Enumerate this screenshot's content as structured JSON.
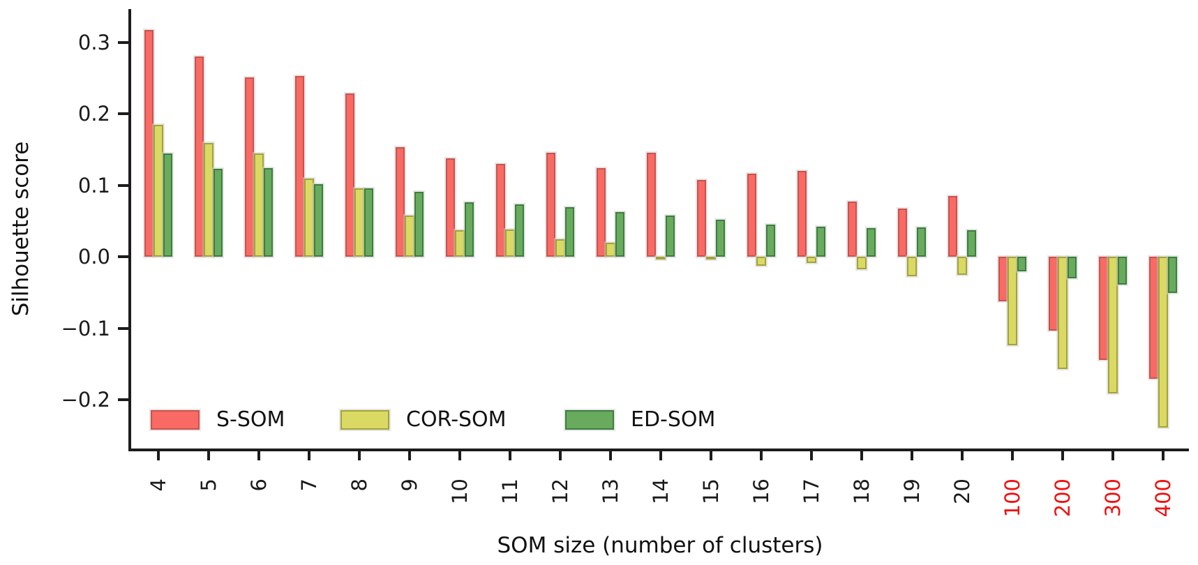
{
  "chart_data": {
    "type": "bar",
    "title": "",
    "xlabel": "SOM size (number of clusters)",
    "ylabel": "Silhouette score",
    "categories": [
      "4",
      "5",
      "6",
      "7",
      "8",
      "9",
      "10",
      "11",
      "12",
      "13",
      "14",
      "15",
      "16",
      "17",
      "18",
      "19",
      "20",
      "100",
      "200",
      "300",
      "400"
    ],
    "highlighted_categories": [
      "100",
      "200",
      "300",
      "400"
    ],
    "highlight_color": "#f01010",
    "tick_label_color": "#1a1a1a",
    "yticks": [
      "0.3",
      "0.2",
      "0.1",
      "0.0",
      "−0.1",
      "−0.2"
    ],
    "ytick_values": [
      0.3,
      0.2,
      0.1,
      0.0,
      -0.1,
      -0.2
    ],
    "ylim": [
      -0.268,
      0.345
    ],
    "grid": false,
    "legend_position": "inside lower-left, horizontal",
    "series": [
      {
        "name": "S-SOM",
        "fill": "#f96a64",
        "edge": "#c9534b",
        "values": [
          0.317,
          0.28,
          0.251,
          0.253,
          0.228,
          0.153,
          0.138,
          0.13,
          0.145,
          0.124,
          0.145,
          0.107,
          0.116,
          0.12,
          0.077,
          0.067,
          0.085,
          -0.062,
          -0.103,
          -0.144,
          -0.171
        ]
      },
      {
        "name": "COR-SOM",
        "fill": "#d9d964",
        "edge": "#a3a339",
        "values": [
          0.184,
          0.159,
          0.144,
          0.109,
          0.096,
          0.058,
          0.037,
          0.038,
          0.024,
          0.02,
          -0.002,
          -0.003,
          -0.013,
          -0.009,
          -0.018,
          -0.027,
          -0.025,
          -0.124,
          -0.157,
          -0.191,
          -0.239
        ]
      },
      {
        "name": "ED-SOM",
        "fill": "#68ab5e",
        "edge": "#3c7e3c",
        "values": [
          0.144,
          0.123,
          0.124,
          0.101,
          0.096,
          0.091,
          0.076,
          0.073,
          0.069,
          0.062,
          0.058,
          0.052,
          0.045,
          0.042,
          0.04,
          0.041,
          0.037,
          -0.02,
          -0.03,
          -0.039,
          -0.051
        ]
      }
    ]
  }
}
